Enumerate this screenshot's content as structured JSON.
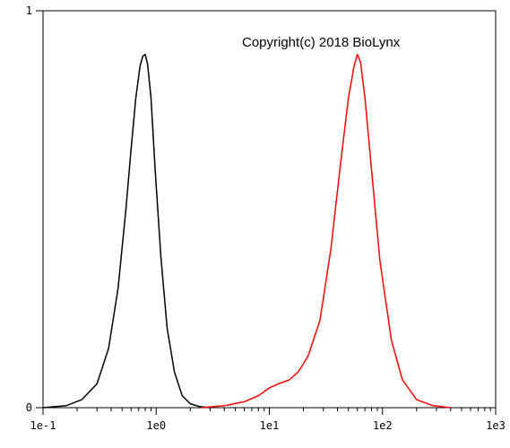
{
  "chart_data": {
    "type": "line",
    "title": "",
    "xlabel": "",
    "ylabel": "",
    "x_scale": "log",
    "xlim": [
      0.1,
      1000
    ],
    "ylim": [
      0,
      1
    ],
    "x_ticks": [
      0.1,
      1,
      10,
      100,
      1000
    ],
    "x_tick_labels": [
      "1e-1",
      "1e0",
      "1e1",
      "1e2",
      "1e3"
    ],
    "y_ticks": [
      0,
      1
    ],
    "y_tick_labels": [
      "0",
      "1"
    ],
    "grid": false,
    "annotation": "Copyright(c) 2018 BioLynx",
    "series": [
      {
        "color": "#000000",
        "x": [
          0.1,
          0.16,
          0.22,
          0.3,
          0.38,
          0.46,
          0.54,
          0.6,
          0.66,
          0.72,
          0.76,
          0.8,
          0.84,
          0.9,
          0.98,
          1.1,
          1.25,
          1.45,
          1.7,
          2.0,
          2.4,
          3.0
        ],
        "y": [
          0.0,
          0.005,
          0.02,
          0.06,
          0.15,
          0.3,
          0.5,
          0.65,
          0.78,
          0.86,
          0.885,
          0.89,
          0.865,
          0.78,
          0.6,
          0.38,
          0.2,
          0.09,
          0.03,
          0.01,
          0.003,
          0.0
        ]
      },
      {
        "color": "#ff0000",
        "x": [
          2.5,
          4,
          6,
          8,
          10,
          12,
          15,
          18,
          22,
          28,
          35,
          42,
          50,
          56,
          60,
          64,
          70,
          80,
          95,
          120,
          150,
          200,
          280,
          400
        ],
        "y": [
          0.0,
          0.005,
          0.015,
          0.03,
          0.05,
          0.06,
          0.07,
          0.09,
          0.13,
          0.22,
          0.4,
          0.6,
          0.78,
          0.86,
          0.89,
          0.87,
          0.78,
          0.6,
          0.37,
          0.17,
          0.07,
          0.02,
          0.005,
          0.0
        ]
      }
    ]
  }
}
